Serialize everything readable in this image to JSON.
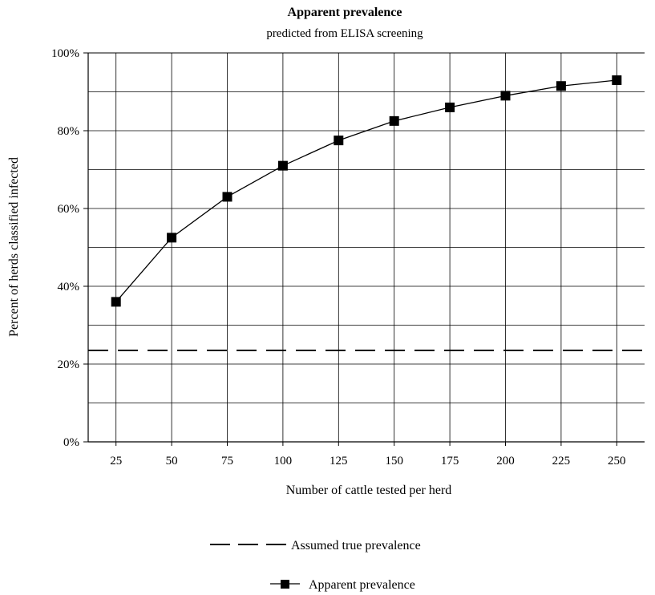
{
  "chart_data": {
    "type": "line",
    "title": "Apparent prevalence",
    "subtitle": "predicted from ELISA screening",
    "xlabel": "Number of cattle tested per herd",
    "ylabel": "Percent of herds classified infected",
    "categories": [
      "25",
      "50",
      "75",
      "100",
      "125",
      "150",
      "175",
      "200",
      "225",
      "250"
    ],
    "y_ticks": [
      "0%",
      "20%",
      "40%",
      "60%",
      "80%",
      "100%"
    ],
    "ylim": [
      0,
      100
    ],
    "grid": true,
    "series": [
      {
        "name": "Apparent prevalence",
        "values": [
          36,
          52.5,
          63,
          71,
          77.5,
          82.5,
          86,
          89,
          91.5,
          93
        ],
        "marker": "square",
        "color": "#000000"
      }
    ],
    "reference_lines": [
      {
        "name": "Assumed true prevalence",
        "value": 23.5,
        "style": "dashed",
        "color": "#000000"
      }
    ],
    "legend": {
      "position": "bottom",
      "entries": [
        "Assumed true prevalence",
        "Apparent prevalence"
      ]
    }
  }
}
